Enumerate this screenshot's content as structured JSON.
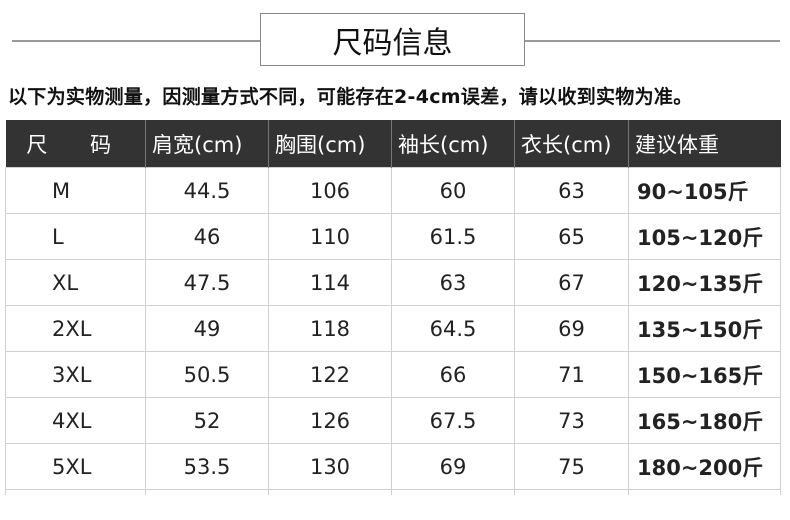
{
  "title": "尺码信息",
  "note": "以下为实物测量，因测量方式不同，可能存在2-4cm误差，请以收到实物为准。",
  "table": {
    "headers": [
      "尺 码",
      "肩宽(cm)",
      "胸围(cm)",
      "袖长(cm)",
      "衣长(cm)",
      "建议体重"
    ],
    "rows": [
      [
        "M",
        "44.5",
        "106",
        "60",
        "63",
        "90~105斤"
      ],
      [
        "L",
        "46",
        "110",
        "61.5",
        "65",
        "105~120斤"
      ],
      [
        "XL",
        "47.5",
        "114",
        "63",
        "67",
        "120~135斤"
      ],
      [
        "2XL",
        "49",
        "118",
        "64.5",
        "69",
        "135~150斤"
      ],
      [
        "3XL",
        "50.5",
        "122",
        "66",
        "71",
        "150~165斤"
      ],
      [
        "4XL",
        "52",
        "126",
        "67.5",
        "73",
        "165~180斤"
      ],
      [
        "5XL",
        "53.5",
        "130",
        "69",
        "75",
        "180~200斤"
      ]
    ]
  },
  "colors": {
    "header_bg": "#333333",
    "header_text": "#ffffff",
    "grid": "#d0d0d0"
  }
}
